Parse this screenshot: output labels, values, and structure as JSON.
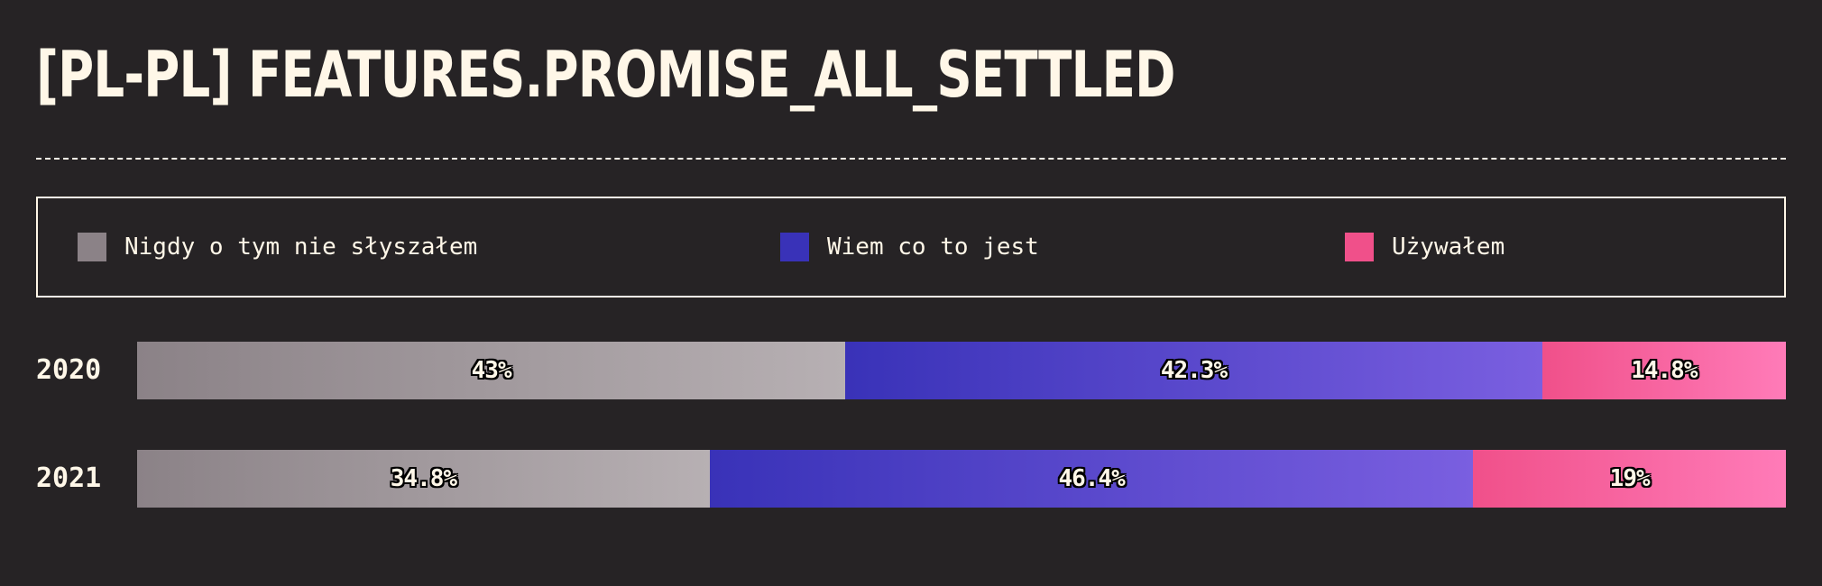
{
  "chart_data": {
    "type": "bar",
    "orientation": "horizontal",
    "stacked": true,
    "title": "[PL-PL] FEATURES.PROMISE_ALL_SETTLED",
    "categories": [
      "2020",
      "2021"
    ],
    "series": [
      {
        "name": "Nigdy o tym nie słyszałem",
        "values": [
          43,
          34.8
        ],
        "labels": [
          "43%",
          "34.8%"
        ],
        "color": "#8b8287",
        "color_end": "#b7b0b3"
      },
      {
        "name": "Wiem co to jest",
        "values": [
          42.3,
          46.4
        ],
        "labels": [
          "42.3%",
          "46.4%"
        ],
        "color": "#3932b8",
        "color_end": "#7a5fe0"
      },
      {
        "name": "Używałem",
        "values": [
          14.8,
          19
        ],
        "labels": [
          "14.8%",
          "19%"
        ],
        "color": "#f0508a",
        "color_end": "#ff7bb8"
      }
    ],
    "legend_position": "top",
    "grid": false
  }
}
